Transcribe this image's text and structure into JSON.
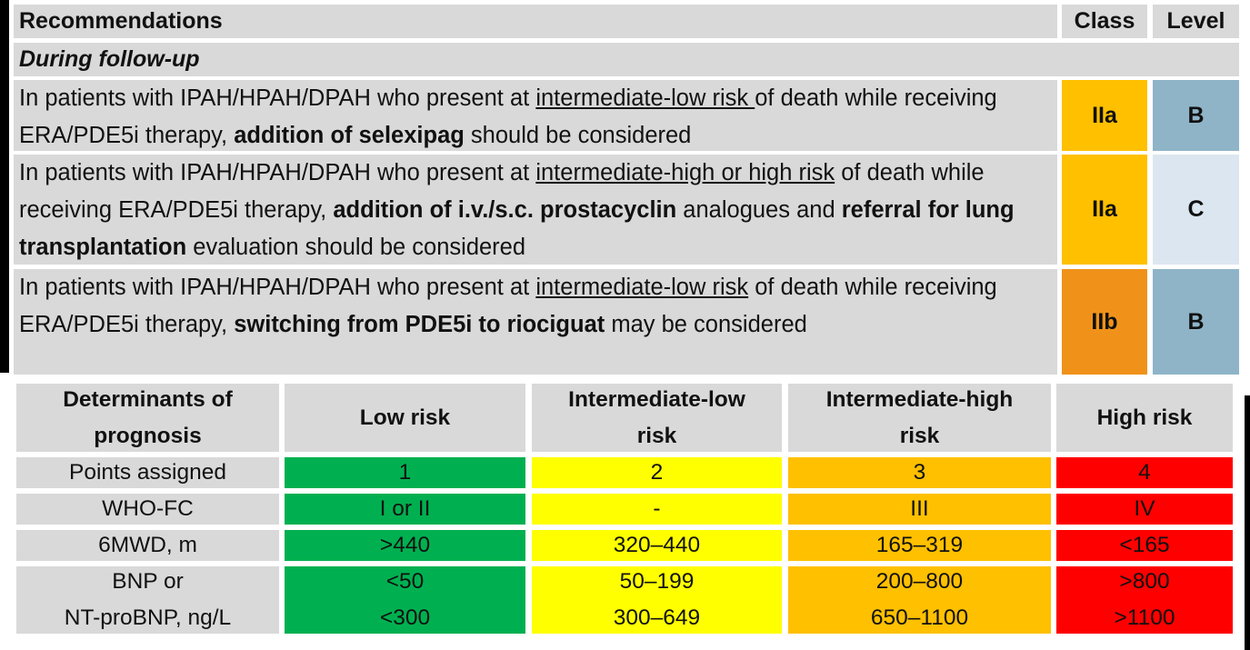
{
  "recommendations": {
    "header": {
      "recommendations": "Recommendations",
      "class": "Class",
      "level": "Level"
    },
    "section": "During follow-up",
    "rows": [
      {
        "text": [
          {
            "text": "In patients with IPAH/HPAH/DPAH who present at "
          },
          {
            "text": "intermediate-low risk ",
            "underline": true
          },
          {
            "text": "of death while receiving ERA/PDE5i therapy, "
          },
          {
            "text": "addition of selexipag",
            "bold": true
          },
          {
            "text": " should be considered"
          }
        ],
        "class": "IIa",
        "class_color": "#ffc000",
        "level": "B",
        "level_color": "#8fb4c8"
      },
      {
        "text": [
          {
            "text": "In patients with IPAH/HPAH/DPAH who present at "
          },
          {
            "text": "intermediate-high or high risk",
            "underline": true
          },
          {
            "text": " of death while receiving ERA/PDE5i therapy, "
          },
          {
            "text": "addition of i.v./s.c. prostacyclin",
            "bold": true
          },
          {
            "text": " analogues and "
          },
          {
            "text": "referral for lung transplantation",
            "bold": true
          },
          {
            "text": " evaluation should be considered"
          }
        ],
        "class": "IIa",
        "class_color": "#ffc000",
        "level": "C",
        "level_color": "#dce6f0"
      },
      {
        "text": [
          {
            "text": "In patients with IPAH/HPAH/DPAH who present at "
          },
          {
            "text": "intermediate-low risk",
            "underline": true
          },
          {
            "text": " of death while receiving ERA/PDE5i therapy, "
          },
          {
            "text": "switching from PDE5i to riociguat",
            "bold": true
          },
          {
            "text": " may be considered"
          }
        ],
        "class": "IIb",
        "class_color": "#f0921a",
        "level": "B",
        "level_color": "#8fb4c8"
      }
    ]
  },
  "risk_table": {
    "header": [
      "Determinants of prognosis",
      "Low risk",
      "Intermediate-low risk",
      "Intermediate-high risk",
      "High risk"
    ],
    "column_colors": [
      "#d9d9d9",
      "#00b050",
      "#ffff00",
      "#ffc000",
      "#ff0000"
    ],
    "rows": [
      [
        "Points assigned",
        "1",
        "2",
        "3",
        "4"
      ],
      [
        "WHO-FC",
        "I or II",
        "-",
        "III",
        "IV"
      ],
      [
        "6MWD, m",
        ">440",
        "320–440",
        "165–319",
        "<165"
      ],
      [
        [
          "BNP or",
          "NT-proBNP, ng/L"
        ],
        [
          "<50",
          "<300"
        ],
        [
          "50–199",
          "300–649"
        ],
        [
          "200–800",
          "650–1100"
        ],
        [
          ">800",
          ">1100"
        ]
      ]
    ]
  }
}
